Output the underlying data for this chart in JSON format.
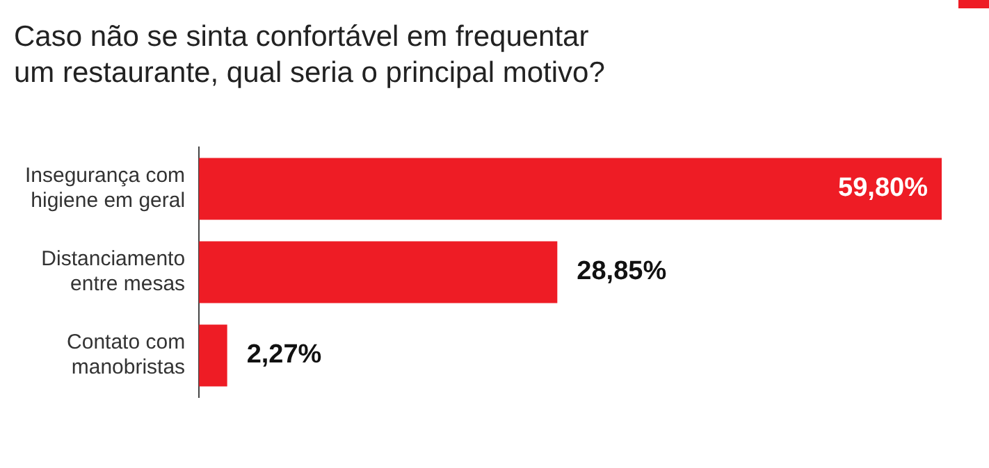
{
  "chart_data": {
    "type": "bar",
    "orientation": "horizontal",
    "title": "Caso não se sinta confortável em frequentar\num restaurante, qual seria o principal motivo?",
    "categories": [
      "Insegurança com higiene em geral",
      "Distanciamento entre mesas",
      "Contato com manobristas"
    ],
    "values": [
      59.8,
      28.85,
      2.27
    ],
    "value_labels": [
      "59,80%",
      "28,85%",
      "2,27%"
    ],
    "color": "#ee1c25",
    "legend": false
  }
}
